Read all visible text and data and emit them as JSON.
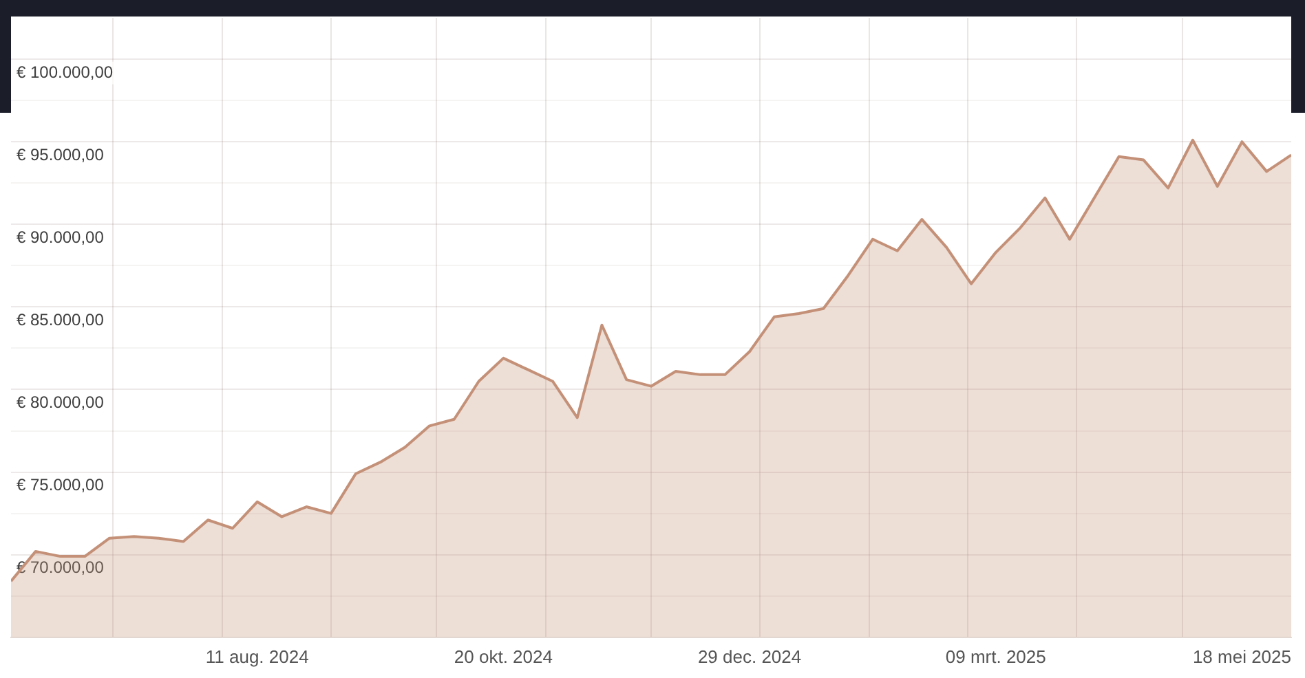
{
  "chart_data": {
    "type": "area",
    "x": [
      "2024-06-02",
      "2024-06-09",
      "2024-06-16",
      "2024-06-23",
      "2024-06-30",
      "2024-07-07",
      "2024-07-14",
      "2024-07-21",
      "2024-07-28",
      "2024-08-04",
      "2024-08-11",
      "2024-08-18",
      "2024-08-25",
      "2024-09-01",
      "2024-09-08",
      "2024-09-15",
      "2024-09-22",
      "2024-09-29",
      "2024-10-06",
      "2024-10-13",
      "2024-10-20",
      "2024-10-27",
      "2024-11-03",
      "2024-11-10",
      "2024-11-17",
      "2024-11-24",
      "2024-12-01",
      "2024-12-08",
      "2024-12-15",
      "2024-12-22",
      "2024-12-29",
      "2025-01-05",
      "2025-01-12",
      "2025-01-19",
      "2025-01-26",
      "2025-02-02",
      "2025-02-09",
      "2025-02-16",
      "2025-02-23",
      "2025-03-02",
      "2025-03-09",
      "2025-03-16",
      "2025-03-23",
      "2025-03-30",
      "2025-04-06",
      "2025-04-13",
      "2025-04-20",
      "2025-04-27",
      "2025-05-04",
      "2025-05-11",
      "2025-05-18",
      "2025-05-25",
      "2025-06-01"
    ],
    "values": [
      68400,
      70200,
      69900,
      69900,
      71000,
      71100,
      71000,
      70800,
      72100,
      71600,
      73200,
      72300,
      72900,
      72500,
      74900,
      75600,
      76500,
      77800,
      78200,
      80500,
      81900,
      81200,
      80500,
      78300,
      83900,
      80600,
      80200,
      81100,
      80900,
      80900,
      82300,
      84400,
      84600,
      84900,
      86900,
      89100,
      88400,
      90300,
      88600,
      86400,
      88300,
      89800,
      91600,
      89100,
      91600,
      94100,
      93900,
      92200,
      95100,
      92300,
      95000,
      93200,
      94200
    ],
    "color": "#c49178",
    "xlim": [
      "2024-06-02",
      "2025-06-01"
    ],
    "xticks": [
      {
        "value": "2024-07-01",
        "label": null
      },
      {
        "value": "2024-08-01",
        "label": null
      },
      {
        "value": "2024-08-11",
        "label": "11 aug. 2024"
      },
      {
        "value": "2024-09-01",
        "label": null
      },
      {
        "value": "2024-10-01",
        "label": null
      },
      {
        "value": "2024-10-20",
        "label": "20 okt. 2024"
      },
      {
        "value": "2024-11-01",
        "label": null
      },
      {
        "value": "2024-12-01",
        "label": null
      },
      {
        "value": "2024-12-29",
        "label": "29 dec. 2024"
      },
      {
        "value": "2025-01-01",
        "label": null
      },
      {
        "value": "2025-02-01",
        "label": null
      },
      {
        "value": "2025-03-01",
        "label": null
      },
      {
        "value": "2025-03-09",
        "label": "09 mrt. 2025"
      },
      {
        "value": "2025-04-01",
        "label": null
      },
      {
        "value": "2025-05-01",
        "label": null
      },
      {
        "value": "2025-05-18",
        "label": "18 mei 2025"
      }
    ],
    "ylim": [
      65000,
      102500
    ],
    "yticks": [
      {
        "value": 67500,
        "label": null
      },
      {
        "value": 70000,
        "label": "€ 70.000,00"
      },
      {
        "value": 72500,
        "label": null
      },
      {
        "value": 75000,
        "label": "€ 75.000,00"
      },
      {
        "value": 77500,
        "label": null
      },
      {
        "value": 80000,
        "label": "€ 80.000,00"
      },
      {
        "value": 82500,
        "label": null
      },
      {
        "value": 85000,
        "label": "€ 85.000,00"
      },
      {
        "value": 87500,
        "label": null
      },
      {
        "value": 90000,
        "label": "€ 90.000,00"
      },
      {
        "value": 92500,
        "label": null
      },
      {
        "value": 95000,
        "label": "€ 95.000,00"
      },
      {
        "value": 97500,
        "label": null
      },
      {
        "value": 100000,
        "label": "€ 100.000,00"
      }
    ],
    "grid": true,
    "marker": "none"
  }
}
